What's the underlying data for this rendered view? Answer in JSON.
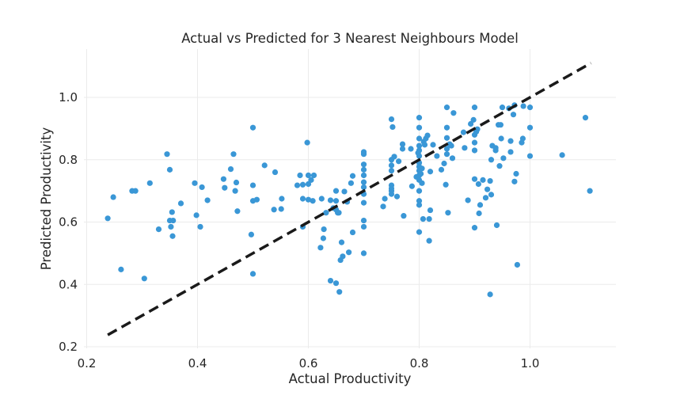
{
  "chart_data": {
    "type": "scatter",
    "title": "Actual vs Predicted for 3 Nearest Neighbours Model",
    "xlabel": "Actual Productivity",
    "ylabel": "Predicted Productivity",
    "xlim": [
      0.195,
      1.155
    ],
    "ylim": [
      0.195,
      1.155
    ],
    "xticks": [
      0.2,
      0.4,
      0.6,
      0.8,
      1.0
    ],
    "xtick_labels": [
      "0.2",
      "0.4",
      "0.6",
      "0.8",
      "1.0"
    ],
    "yticks": [
      0.2,
      0.4,
      0.6,
      0.8,
      1.0
    ],
    "ytick_labels": [
      "0.2",
      "0.4",
      "0.6",
      "0.8",
      "1.0"
    ],
    "grid": true,
    "point_color": "#3a97d6",
    "reference_line": {
      "style": "dashed",
      "color": "#1a1a1a",
      "from": [
        0.238,
        0.238
      ],
      "to": [
        1.11,
        1.11
      ]
    },
    "series": [
      {
        "points": [
          [
            0.238,
            0.612
          ],
          [
            0.248,
            0.68
          ],
          [
            0.262,
            0.448
          ],
          [
            0.282,
            0.7
          ],
          [
            0.288,
            0.7
          ],
          [
            0.304,
            0.419
          ],
          [
            0.314,
            0.725
          ],
          [
            0.33,
            0.577
          ],
          [
            0.345,
            0.818
          ],
          [
            0.35,
            0.768
          ],
          [
            0.35,
            0.605
          ],
          [
            0.352,
            0.585
          ],
          [
            0.354,
            0.632
          ],
          [
            0.355,
            0.555
          ],
          [
            0.356,
            0.605
          ],
          [
            0.37,
            0.66
          ],
          [
            0.395,
            0.725
          ],
          [
            0.398,
            0.622
          ],
          [
            0.405,
            0.585
          ],
          [
            0.408,
            0.712
          ],
          [
            0.418,
            0.67
          ],
          [
            0.447,
            0.738
          ],
          [
            0.449,
            0.71
          ],
          [
            0.46,
            0.77
          ],
          [
            0.465,
            0.818
          ],
          [
            0.468,
            0.7
          ],
          [
            0.47,
            0.727
          ],
          [
            0.472,
            0.635
          ],
          [
            0.497,
            0.56
          ],
          [
            0.5,
            0.903
          ],
          [
            0.5,
            0.718
          ],
          [
            0.5,
            0.668
          ],
          [
            0.5,
            0.434
          ],
          [
            0.507,
            0.672
          ],
          [
            0.521,
            0.782
          ],
          [
            0.538,
            0.64
          ],
          [
            0.54,
            0.76
          ],
          [
            0.551,
            0.642
          ],
          [
            0.552,
            0.675
          ],
          [
            0.58,
            0.718
          ],
          [
            0.585,
            0.75
          ],
          [
            0.59,
            0.72
          ],
          [
            0.59,
            0.675
          ],
          [
            0.59,
            0.585
          ],
          [
            0.598,
            0.855
          ],
          [
            0.6,
            0.75
          ],
          [
            0.6,
            0.722
          ],
          [
            0.6,
            0.672
          ],
          [
            0.605,
            0.735
          ],
          [
            0.608,
            0.668
          ],
          [
            0.61,
            0.75
          ],
          [
            0.622,
            0.518
          ],
          [
            0.624,
            0.675
          ],
          [
            0.627,
            0.548
          ],
          [
            0.628,
            0.577
          ],
          [
            0.632,
            0.63
          ],
          [
            0.64,
            0.67
          ],
          [
            0.64,
            0.412
          ],
          [
            0.645,
            0.645
          ],
          [
            0.65,
            0.7
          ],
          [
            0.65,
            0.668
          ],
          [
            0.65,
            0.64
          ],
          [
            0.65,
            0.404
          ],
          [
            0.653,
            0.63
          ],
          [
            0.655,
            0.63
          ],
          [
            0.656,
            0.376
          ],
          [
            0.658,
            0.478
          ],
          [
            0.66,
            0.535
          ],
          [
            0.662,
            0.49
          ],
          [
            0.665,
            0.698
          ],
          [
            0.67,
            0.665
          ],
          [
            0.673,
            0.503
          ],
          [
            0.677,
            0.725
          ],
          [
            0.68,
            0.567
          ],
          [
            0.68,
            0.748
          ],
          [
            0.7,
            0.825
          ],
          [
            0.7,
            0.818
          ],
          [
            0.7,
            0.785
          ],
          [
            0.7,
            0.768
          ],
          [
            0.7,
            0.75
          ],
          [
            0.7,
            0.728
          ],
          [
            0.7,
            0.712
          ],
          [
            0.7,
            0.69
          ],
          [
            0.7,
            0.662
          ],
          [
            0.7,
            0.605
          ],
          [
            0.7,
            0.585
          ],
          [
            0.7,
            0.5
          ],
          [
            0.735,
            0.65
          ],
          [
            0.738,
            0.675
          ],
          [
            0.75,
            0.93
          ],
          [
            0.75,
            0.8
          ],
          [
            0.75,
            0.782
          ],
          [
            0.75,
            0.765
          ],
          [
            0.75,
            0.718
          ],
          [
            0.75,
            0.708
          ],
          [
            0.75,
            0.7
          ],
          [
            0.75,
            0.69
          ],
          [
            0.752,
            0.905
          ],
          [
            0.755,
            0.81
          ],
          [
            0.76,
            0.682
          ],
          [
            0.763,
            0.795
          ],
          [
            0.77,
            0.85
          ],
          [
            0.77,
            0.835
          ],
          [
            0.772,
            0.62
          ],
          [
            0.785,
            0.835
          ],
          [
            0.787,
            0.715
          ],
          [
            0.795,
            0.745
          ],
          [
            0.798,
            0.822
          ],
          [
            0.8,
            0.935
          ],
          [
            0.8,
            0.903
          ],
          [
            0.8,
            0.868
          ],
          [
            0.8,
            0.845
          ],
          [
            0.8,
            0.83
          ],
          [
            0.8,
            0.812
          ],
          [
            0.8,
            0.79
          ],
          [
            0.8,
            0.778
          ],
          [
            0.8,
            0.765
          ],
          [
            0.8,
            0.75
          ],
          [
            0.8,
            0.735
          ],
          [
            0.8,
            0.7
          ],
          [
            0.8,
            0.668
          ],
          [
            0.8,
            0.655
          ],
          [
            0.8,
            0.568
          ],
          [
            0.803,
            0.755
          ],
          [
            0.805,
            0.772
          ],
          [
            0.805,
            0.725
          ],
          [
            0.807,
            0.61
          ],
          [
            0.808,
            0.858
          ],
          [
            0.81,
            0.848
          ],
          [
            0.812,
            0.868
          ],
          [
            0.815,
            0.878
          ],
          [
            0.818,
            0.61
          ],
          [
            0.818,
            0.54
          ],
          [
            0.82,
            0.638
          ],
          [
            0.82,
            0.762
          ],
          [
            0.825,
            0.848
          ],
          [
            0.832,
            0.812
          ],
          [
            0.84,
            0.768
          ],
          [
            0.845,
            0.788
          ],
          [
            0.848,
            0.72
          ],
          [
            0.85,
            0.968
          ],
          [
            0.85,
            0.903
          ],
          [
            0.85,
            0.87
          ],
          [
            0.85,
            0.835
          ],
          [
            0.85,
            0.818
          ],
          [
            0.852,
            0.63
          ],
          [
            0.855,
            0.85
          ],
          [
            0.858,
            0.845
          ],
          [
            0.86,
            0.805
          ],
          [
            0.862,
            0.95
          ],
          [
            0.88,
            0.888
          ],
          [
            0.882,
            0.838
          ],
          [
            0.888,
            0.67
          ],
          [
            0.893,
            0.915
          ],
          [
            0.898,
            0.928
          ],
          [
            0.9,
            0.968
          ],
          [
            0.9,
            0.88
          ],
          [
            0.9,
            0.855
          ],
          [
            0.9,
            0.83
          ],
          [
            0.9,
            0.738
          ],
          [
            0.9,
            0.582
          ],
          [
            0.903,
            0.89
          ],
          [
            0.905,
            0.898
          ],
          [
            0.907,
            0.722
          ],
          [
            0.908,
            0.628
          ],
          [
            0.91,
            0.655
          ],
          [
            0.915,
            0.735
          ],
          [
            0.92,
            0.678
          ],
          [
            0.923,
            0.705
          ],
          [
            0.928,
            0.732
          ],
          [
            0.928,
            0.368
          ],
          [
            0.93,
            0.688
          ],
          [
            0.93,
            0.8
          ],
          [
            0.932,
            0.845
          ],
          [
            0.938,
            0.838
          ],
          [
            0.938,
            0.83
          ],
          [
            0.94,
            0.59
          ],
          [
            0.943,
            0.912
          ],
          [
            0.945,
            0.78
          ],
          [
            0.947,
            0.912
          ],
          [
            0.948,
            0.868
          ],
          [
            0.95,
            0.968
          ],
          [
            0.952,
            0.805
          ],
          [
            0.962,
            0.965
          ],
          [
            0.965,
            0.86
          ],
          [
            0.965,
            0.825
          ],
          [
            0.97,
            0.945
          ],
          [
            0.972,
            0.73
          ],
          [
            0.972,
            0.975
          ],
          [
            0.975,
            0.755
          ],
          [
            0.977,
            0.463
          ],
          [
            0.985,
            0.855
          ],
          [
            0.987,
            0.868
          ],
          [
            0.988,
            0.972
          ],
          [
            1.0,
            0.968
          ],
          [
            1.0,
            0.903
          ],
          [
            1.0,
            0.812
          ],
          [
            1.058,
            0.815
          ],
          [
            1.1,
            0.935
          ],
          [
            1.108,
            0.7
          ]
        ]
      }
    ]
  }
}
